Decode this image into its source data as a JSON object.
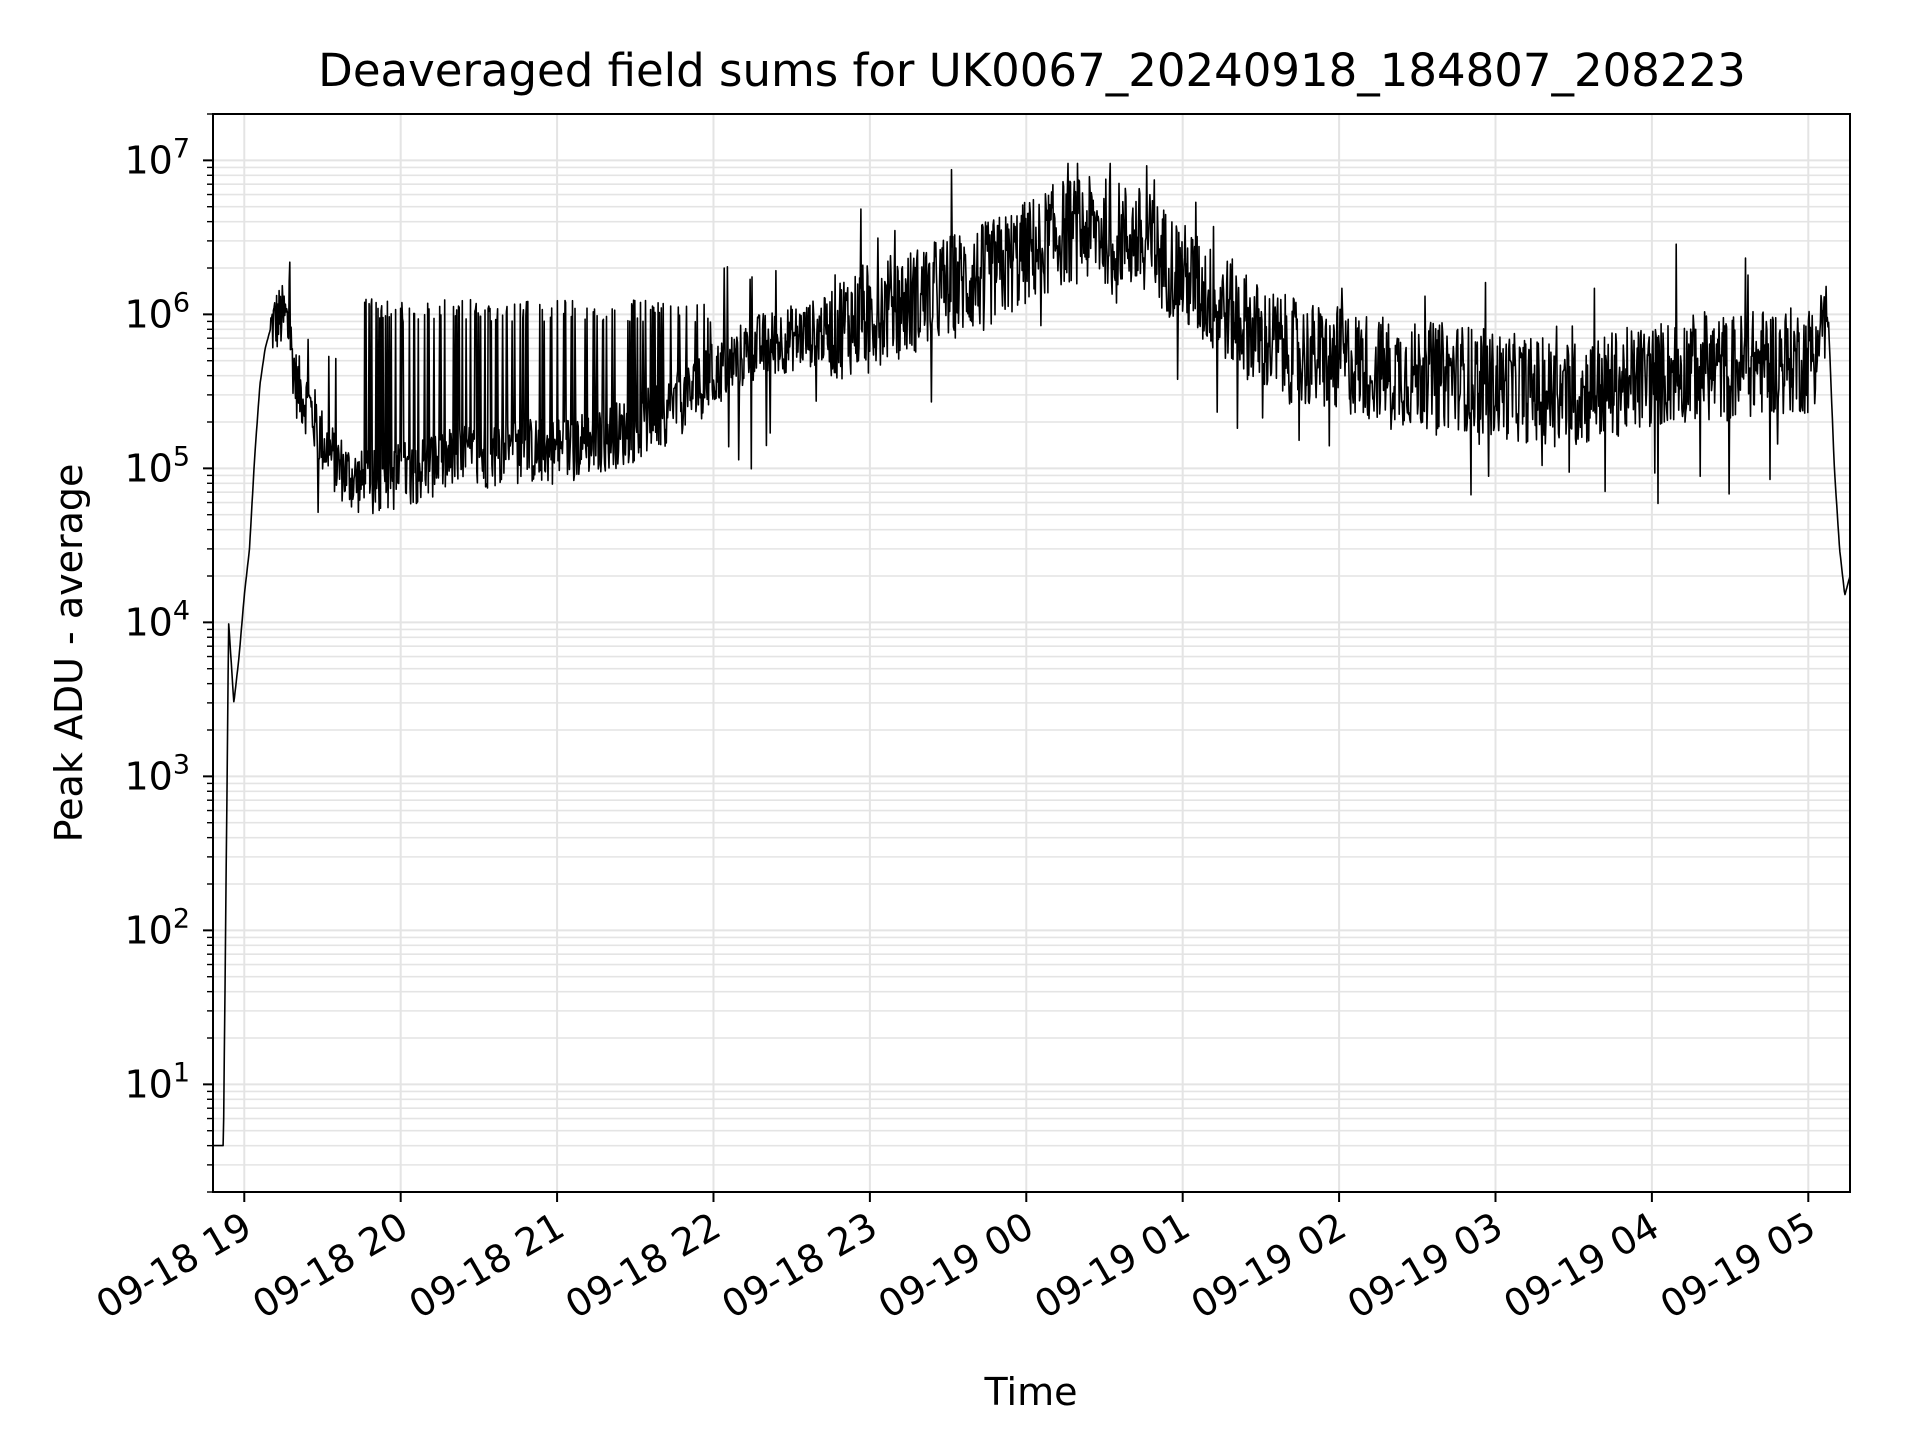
{
  "chart_data": {
    "type": "line",
    "title": "Deaveraged field sums for UK0067_20240918_184807_208223",
    "xlabel": "Time",
    "ylabel": "Peak ADU - average",
    "yscale": "log",
    "ylim": [
      2,
      20000000
    ],
    "xlim": [
      "2024-09-18 18:48",
      "2024-09-19 05:16"
    ],
    "grid": true,
    "legend": "none",
    "line_color": "#000000",
    "x_ticks": [
      "09-18 19",
      "09-18 20",
      "09-18 21",
      "09-18 22",
      "09-18 23",
      "09-19 00",
      "09-19 01",
      "09-19 02",
      "09-19 03",
      "09-19 04",
      "09-19 05"
    ],
    "y_ticks": [
      {
        "base": "10",
        "exp": "1"
      },
      {
        "base": "10",
        "exp": "2"
      },
      {
        "base": "10",
        "exp": "3"
      },
      {
        "base": "10",
        "exp": "4"
      },
      {
        "base": "10",
        "exp": "5"
      },
      {
        "base": "10",
        "exp": "6"
      },
      {
        "base": "10",
        "exp": "7"
      }
    ],
    "series": [
      {
        "x": [
          "2024-09-18 18:48",
          "2024-09-18 18:52",
          "2024-09-18 18:54",
          "2024-09-18 18:56",
          "2024-09-18 18:58",
          "2024-09-18 19:00",
          "2024-09-18 19:02",
          "2024-09-18 19:04",
          "2024-09-18 19:06",
          "2024-09-18 19:08",
          "2024-09-18 19:10",
          "2024-09-18 19:12",
          "2024-09-18 19:14",
          "2024-09-18 19:16",
          "2024-09-18 19:18",
          "2024-09-18 19:20",
          "2024-09-18 19:25",
          "2024-09-18 19:30",
          "2024-09-18 19:35",
          "2024-09-18 19:40",
          "2024-09-18 19:45",
          "2024-09-18 19:50",
          "2024-09-18 20:00",
          "2024-09-18 20:15",
          "2024-09-18 20:30",
          "2024-09-18 20:45",
          "2024-09-18 21:00",
          "2024-09-18 21:15",
          "2024-09-18 21:30",
          "2024-09-18 21:45",
          "2024-09-18 22:00",
          "2024-09-18 22:15",
          "2024-09-18 22:30",
          "2024-09-18 22:45",
          "2024-09-18 23:00",
          "2024-09-18 23:15",
          "2024-09-18 23:30",
          "2024-09-18 23:45",
          "2024-09-19 00:00",
          "2024-09-19 00:15",
          "2024-09-19 00:30",
          "2024-09-19 00:45",
          "2024-09-19 01:00",
          "2024-09-19 01:10",
          "2024-09-19 01:20",
          "2024-09-19 01:30",
          "2024-09-19 01:45",
          "2024-09-19 02:00",
          "2024-09-19 02:15",
          "2024-09-19 02:30",
          "2024-09-19 02:45",
          "2024-09-19 03:00",
          "2024-09-19 03:15",
          "2024-09-19 03:30",
          "2024-09-19 03:45",
          "2024-09-19 04:00",
          "2024-09-19 04:15",
          "2024-09-19 04:30",
          "2024-09-19 04:45",
          "2024-09-19 05:00",
          "2024-09-19 05:05",
          "2024-09-19 05:08",
          "2024-09-19 05:10",
          "2024-09-19 05:12",
          "2024-09-19 05:14",
          "2024-09-19 05:16"
        ],
        "y": [
          4,
          4,
          10000,
          3000,
          6000,
          15000,
          30000,
          120000,
          350000,
          600000,
          800000,
          900000,
          950000,
          950000,
          600000,
          350000,
          250000,
          150000,
          110000,
          90000,
          80000,
          80000,
          90000,
          110000,
          120000,
          130000,
          130000,
          150000,
          180000,
          250000,
          400000,
          600000,
          700000,
          800000,
          1000000,
          1200000,
          1500000,
          1800000,
          2500000,
          3500000,
          3500000,
          3000000,
          1800000,
          1300000,
          1000000,
          700000,
          550000,
          500000,
          450000,
          400000,
          400000,
          350000,
          320000,
          300000,
          350000,
          400000,
          450000,
          450000,
          500000,
          500000,
          1000000,
          700000,
          100000,
          30000,
          15000,
          20000
        ]
      }
    ]
  }
}
